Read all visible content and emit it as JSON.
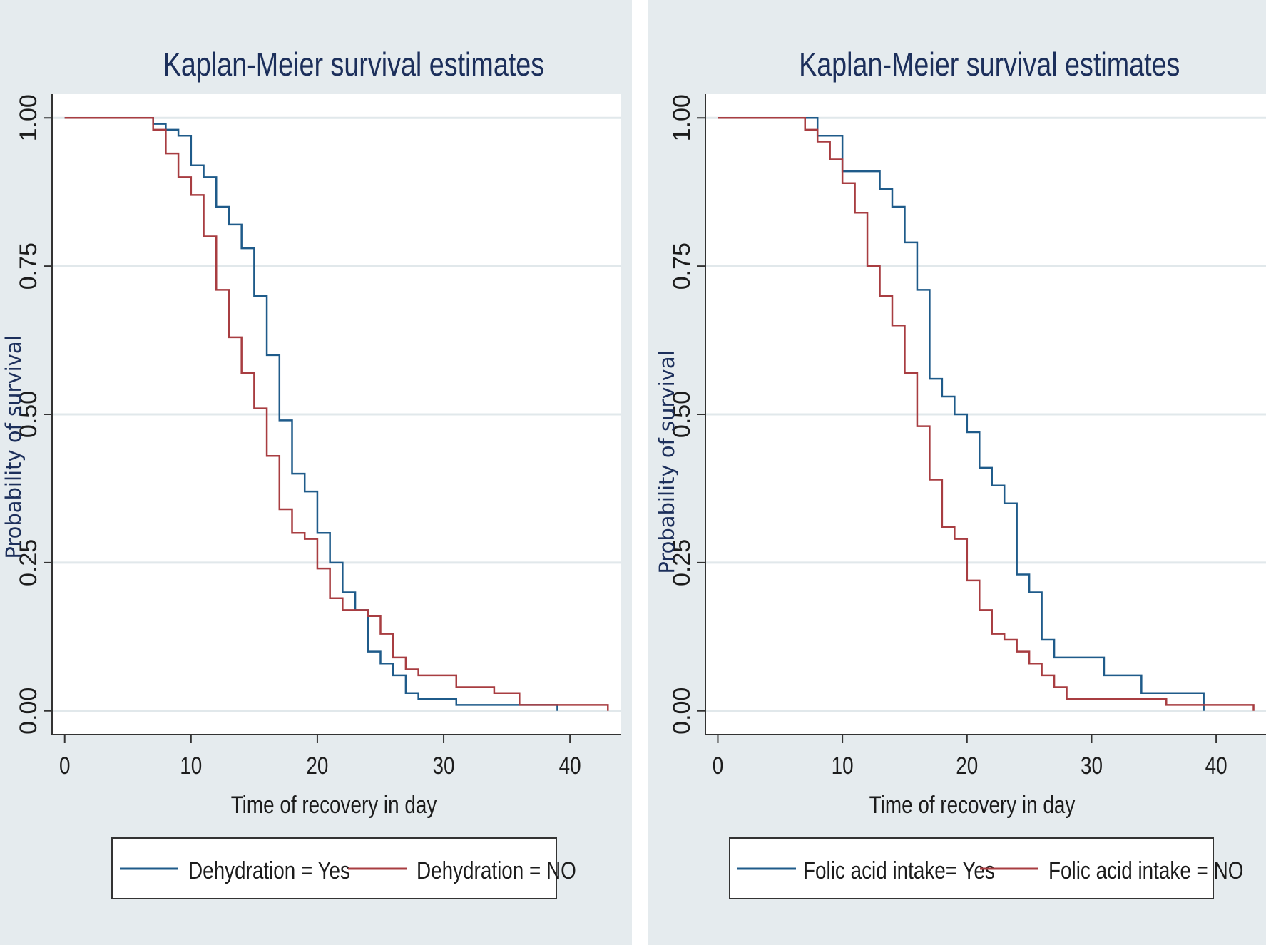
{
  "colors": {
    "panel_bg": "#e5ebee",
    "plot_bg": "#ffffff",
    "grid": "#e1e8eb",
    "axis": "#333333",
    "title": "#1c2f5b",
    "series_yes": "#1f5b8a",
    "series_no": "#a83d41"
  },
  "chart_data": [
    {
      "type": "line",
      "step": true,
      "title": "Kaplan-Meier survival estimates",
      "xlabel": "Time of recovery in day",
      "ylabel": "Probability of survival",
      "xlim": [
        -1,
        44
      ],
      "ylim": [
        -0.04,
        1.04
      ],
      "x_ticks": [
        "0",
        "10",
        "20",
        "30",
        "40"
      ],
      "x_tick_values": [
        0,
        10,
        20,
        30,
        40
      ],
      "y_ticks": [
        "0.00",
        "0.25",
        "0.50",
        "0.75",
        "1.00"
      ],
      "y_tick_values": [
        0,
        0.25,
        0.5,
        0.75,
        1
      ],
      "grid": true,
      "legend": [
        "Dehydration = Yes",
        "Dehydration = NO"
      ],
      "series": [
        {
          "name": "Dehydration = Yes",
          "x": [
            0,
            7,
            8,
            9,
            10,
            11,
            12,
            13,
            14,
            15,
            16,
            17,
            18,
            19,
            20,
            21,
            22,
            23,
            24,
            25,
            26,
            27,
            28,
            31,
            39
          ],
          "y": [
            1.0,
            0.99,
            0.98,
            0.97,
            0.92,
            0.9,
            0.85,
            0.82,
            0.78,
            0.7,
            0.6,
            0.49,
            0.4,
            0.37,
            0.3,
            0.25,
            0.2,
            0.17,
            0.1,
            0.08,
            0.06,
            0.03,
            0.02,
            0.01,
            0.0
          ],
          "x_end": 39
        },
        {
          "name": "Dehydration = NO",
          "x": [
            0,
            7,
            8,
            9,
            10,
            11,
            12,
            13,
            14,
            15,
            16,
            17,
            18,
            19,
            20,
            21,
            22,
            24,
            25,
            26,
            27,
            28,
            29,
            31,
            34,
            36,
            43
          ],
          "y": [
            1.0,
            0.98,
            0.94,
            0.9,
            0.87,
            0.8,
            0.71,
            0.63,
            0.57,
            0.51,
            0.43,
            0.34,
            0.3,
            0.29,
            0.24,
            0.19,
            0.17,
            0.16,
            0.13,
            0.09,
            0.07,
            0.06,
            0.06,
            0.04,
            0.03,
            0.01,
            0.0
          ],
          "x_end": 43
        }
      ]
    },
    {
      "type": "line",
      "step": true,
      "title": "Kaplan-Meier survival estimates",
      "xlabel": "Time of recovery in day",
      "ylabel": "Probability of survival",
      "xlim": [
        -1,
        44
      ],
      "ylim": [
        -0.04,
        1.04
      ],
      "x_ticks": [
        "0",
        "10",
        "20",
        "30",
        "40"
      ],
      "x_tick_values": [
        0,
        10,
        20,
        30,
        40
      ],
      "y_ticks": [
        "0.00",
        "0.25",
        "0.50",
        "0.75",
        "1.00"
      ],
      "y_tick_values": [
        0,
        0.25,
        0.5,
        0.75,
        1
      ],
      "grid": true,
      "legend": [
        "Folic acid intake= Yes",
        "Folic acid intake = NO"
      ],
      "series": [
        {
          "name": "Folic acid intake= Yes",
          "x": [
            0,
            8,
            10,
            13,
            14,
            15,
            16,
            17,
            18,
            19,
            20,
            21,
            22,
            23,
            24,
            25,
            26,
            27,
            31,
            34,
            39
          ],
          "y": [
            1.0,
            0.97,
            0.91,
            0.88,
            0.85,
            0.79,
            0.71,
            0.56,
            0.53,
            0.5,
            0.47,
            0.41,
            0.38,
            0.35,
            0.23,
            0.2,
            0.12,
            0.09,
            0.06,
            0.03,
            0.0
          ],
          "x_end": 39
        },
        {
          "name": "Folic acid intake = NO",
          "x": [
            0,
            7,
            8,
            9,
            10,
            11,
            12,
            13,
            14,
            15,
            16,
            17,
            18,
            19,
            20,
            21,
            22,
            23,
            24,
            25,
            26,
            27,
            28,
            31,
            36,
            43
          ],
          "y": [
            1.0,
            0.98,
            0.96,
            0.93,
            0.89,
            0.84,
            0.75,
            0.7,
            0.65,
            0.57,
            0.48,
            0.39,
            0.31,
            0.29,
            0.22,
            0.17,
            0.13,
            0.12,
            0.1,
            0.08,
            0.06,
            0.04,
            0.02,
            0.02,
            0.01,
            0.0
          ],
          "x_end": 43
        }
      ]
    }
  ]
}
